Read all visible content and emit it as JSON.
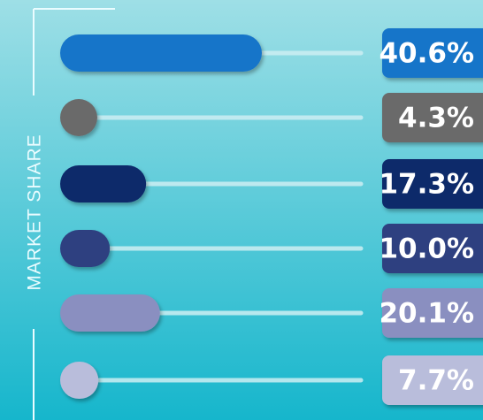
{
  "chart_data": {
    "type": "bar",
    "orientation": "horizontal",
    "ylabel": "MARKET SHARE",
    "values": [
      40.6,
      4.3,
      17.3,
      10.0,
      20.1,
      7.7
    ],
    "value_labels": [
      "40.6%",
      "4.3%",
      "17.3%",
      "10.0%",
      "20.1%",
      "7.7%"
    ],
    "colors": [
      "#1874c9",
      "#6b6b6b",
      "#0d2a6b",
      "#2e3f80",
      "#8a8fc0",
      "#b9bddb"
    ]
  }
}
